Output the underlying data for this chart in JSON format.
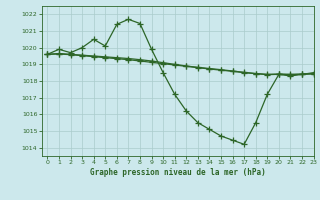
{
  "title": "Graphe pression niveau de la mer (hPa)",
  "background_color": "#cce8ec",
  "grid_color": "#aacccc",
  "line_color": "#2d6628",
  "xlim": [
    -0.5,
    23
  ],
  "ylim": [
    1013.5,
    1022.5
  ],
  "yticks": [
    1014,
    1015,
    1016,
    1017,
    1018,
    1019,
    1020,
    1021,
    1022
  ],
  "xticks": [
    0,
    1,
    2,
    3,
    4,
    5,
    6,
    7,
    8,
    9,
    10,
    11,
    12,
    13,
    14,
    15,
    16,
    17,
    18,
    19,
    20,
    21,
    22,
    23
  ],
  "line1_x": [
    0,
    1,
    2,
    3,
    4,
    5,
    6,
    7,
    8,
    9,
    10,
    11,
    12,
    13,
    14,
    15,
    16,
    17,
    18,
    19,
    20,
    21,
    22,
    23
  ],
  "line1_y": [
    1019.6,
    1019.9,
    1019.7,
    1020.0,
    1020.5,
    1020.1,
    1021.4,
    1021.7,
    1021.45,
    1019.9,
    1018.5,
    1017.2,
    1016.2,
    1015.5,
    1015.1,
    1014.7,
    1014.45,
    1014.2,
    1015.5,
    1017.2,
    1018.4,
    1018.3,
    1018.4,
    1018.5
  ],
  "line2_x": [
    0,
    1,
    2,
    3,
    4,
    5,
    6,
    7,
    8,
    9,
    10,
    11,
    12,
    13,
    14,
    15,
    16,
    17,
    18,
    19,
    20,
    21,
    22,
    23
  ],
  "line2_y": [
    1019.6,
    1019.65,
    1019.6,
    1019.55,
    1019.5,
    1019.45,
    1019.4,
    1019.35,
    1019.28,
    1019.2,
    1019.1,
    1019.0,
    1018.9,
    1018.82,
    1018.75,
    1018.68,
    1018.6,
    1018.52,
    1018.45,
    1018.4,
    1018.42,
    1018.4,
    1018.42,
    1018.45
  ],
  "line3_x": [
    0,
    1,
    2,
    3,
    4,
    5,
    6,
    7,
    8,
    9,
    10,
    11,
    12,
    13,
    14,
    15,
    16,
    17,
    18,
    19,
    20,
    21,
    22,
    23
  ],
  "line3_y": [
    1019.6,
    1019.62,
    1019.58,
    1019.52,
    1019.46,
    1019.4,
    1019.34,
    1019.28,
    1019.2,
    1019.12,
    1019.04,
    1018.96,
    1018.88,
    1018.8,
    1018.72,
    1018.65,
    1018.58,
    1018.5,
    1018.44,
    1018.38,
    1018.4,
    1018.38,
    1018.4,
    1018.42
  ]
}
